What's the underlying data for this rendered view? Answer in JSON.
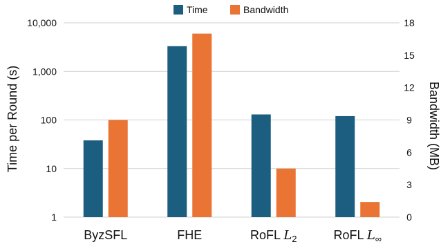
{
  "chart_data": {
    "type": "bar",
    "categories": [
      "ByzSFL",
      "FHE",
      "RoFL L2",
      "RoFL L∞"
    ],
    "category_labels": [
      {
        "base": "ByzSFL",
        "math": "",
        "sub": ""
      },
      {
        "base": "FHE",
        "math": "",
        "sub": ""
      },
      {
        "base": "RoFL ",
        "math": "L",
        "sub": "2"
      },
      {
        "base": "RoFL ",
        "math": "L",
        "sub": "∞"
      }
    ],
    "series": [
      {
        "name": "Time",
        "axis": "left",
        "color": "#1b5e80",
        "values": [
          38,
          3300,
          130,
          120
        ]
      },
      {
        "name": "Bandwidth",
        "axis": "right",
        "color": "#ea7434",
        "values": [
          9,
          17,
          4.5,
          1.4
        ]
      }
    ],
    "left_axis": {
      "label": "Time per Round (s)",
      "scale": "log",
      "range": [
        1,
        10000
      ],
      "ticks": [
        1,
        10,
        100,
        1000,
        10000
      ],
      "tick_labels": [
        "1",
        "10",
        "100",
        "1,000",
        "10,000"
      ]
    },
    "right_axis": {
      "label": "Bandwidth (MB)",
      "scale": "linear",
      "range": [
        0,
        18
      ],
      "ticks": [
        0,
        3,
        6,
        9,
        12,
        15,
        18
      ],
      "tick_labels": [
        "0",
        "3",
        "6",
        "9",
        "12",
        "15",
        "18"
      ]
    },
    "grid": true,
    "legend_position": "top-center"
  }
}
